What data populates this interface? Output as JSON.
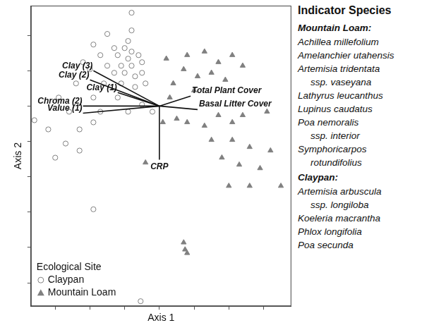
{
  "chart_data": {
    "type": "scatter",
    "x_label": "Axis 1",
    "y_label": "Axis 2",
    "xlim": [
      -1.85,
      1.9
    ],
    "ylim": [
      -2.83,
      1.42
    ],
    "xticks": [
      -1.5,
      -1,
      -0.5,
      0,
      0.5,
      1,
      1.5
    ],
    "yticks": [
      -2.5,
      -2,
      -1.5,
      -1,
      -0.5,
      0,
      0.5,
      1
    ],
    "tick_labels": false,
    "grid": false,
    "legend": "lower left",
    "legend_title": "Ecological Site",
    "series": [
      {
        "name": "Claypan",
        "color": "#808080",
        "marker": "open_circle",
        "x": [
          -0.4,
          -0.4,
          -0.75,
          -0.45,
          -0.95,
          -0.65,
          -0.5,
          -0.4,
          -0.85,
          -0.6,
          -0.45,
          -0.3,
          -1.1,
          -0.75,
          -0.55,
          -0.4,
          -0.25,
          -1.0,
          -0.65,
          -0.5,
          -0.35,
          -0.25,
          -1.2,
          -0.8,
          -0.55,
          -0.35,
          -0.2,
          -1.45,
          -0.95,
          -0.6,
          -1.3,
          -0.85,
          -0.45,
          -1.6,
          -1.15,
          -0.95,
          -1.8,
          -1.35,
          -1.5,
          -1.15,
          -0.95,
          -0.27,
          -0.1,
          -0.25
        ],
        "y": [
          1.32,
          1.07,
          1.02,
          0.92,
          0.87,
          0.82,
          0.82,
          0.77,
          0.72,
          0.72,
          0.67,
          0.72,
          0.62,
          0.57,
          0.57,
          0.57,
          0.62,
          0.52,
          0.47,
          0.47,
          0.42,
          0.47,
          0.32,
          0.32,
          0.32,
          0.27,
          0.32,
          0.12,
          0.12,
          0.12,
          -0.08,
          -0.08,
          -0.08,
          -0.33,
          -0.33,
          -0.23,
          -0.2,
          -0.53,
          -0.73,
          -0.63,
          -1.46,
          -2.76,
          -0.08,
          0.02
        ]
      },
      {
        "name": "Mountain Loam",
        "color": "#808080",
        "marker": "triangle",
        "x": [
          0.1,
          0.4,
          0.65,
          0.85,
          1.05,
          1.2,
          0.35,
          0.55,
          0.75,
          0.95,
          0.2,
          0.5,
          0.15,
          0.05,
          0.25,
          0.4,
          0.65,
          0.85,
          1.05,
          1.2,
          1.55,
          0.75,
          1.05,
          1.3,
          1.6,
          0.9,
          1.15,
          1.45,
          -0.2,
          1.0,
          1.3,
          1.75,
          0.35,
          0.37,
          0.4
        ],
        "y": [
          0.67,
          0.72,
          0.77,
          0.62,
          0.72,
          0.57,
          0.52,
          0.42,
          0.47,
          0.37,
          0.32,
          0.22,
          0.12,
          -0.23,
          -0.18,
          -0.23,
          -0.28,
          -0.13,
          -0.23,
          -0.13,
          -0.08,
          -0.48,
          -0.48,
          -0.58,
          -0.63,
          -0.73,
          -0.83,
          -0.88,
          -0.8,
          -1.13,
          -1.13,
          -1.13,
          -1.93,
          -2.03,
          -2.08
        ]
      }
    ],
    "vectors": [
      {
        "label": "Clay (3)",
        "x": -0.95,
        "y": 0.5
      },
      {
        "label": "Clay (2)",
        "x": -1.0,
        "y": 0.37
      },
      {
        "label": "Clay (1)",
        "x": -0.6,
        "y": 0.19
      },
      {
        "label": "Chroma (2)",
        "x": -1.1,
        "y": 0.0
      },
      {
        "label": "Value (1)",
        "x": -1.1,
        "y": -0.1
      },
      {
        "label": "Total Plant Cover",
        "x": 0.45,
        "y": 0.14
      },
      {
        "label": "Basal Litter Cover",
        "x": 0.55,
        "y": -0.05
      },
      {
        "label": "CRP",
        "x": 0.0,
        "y": -0.76
      }
    ]
  },
  "indicator_species": {
    "title": "Indicator Species",
    "groups": [
      {
        "name": "Mountain Loam:",
        "species": [
          [
            "Achillea millefolium"
          ],
          [
            "Amelanchier utahensis"
          ],
          [
            "Artemisia tridentata",
            "ssp. vaseyana"
          ],
          [
            "Lathyrus leucanthus"
          ],
          [
            "Lupinus caudatus"
          ],
          [
            "Poa nemoralis",
            "ssp. interior"
          ],
          [
            "Symphoricarpos",
            "rotundifolius"
          ]
        ]
      },
      {
        "name": "Claypan:",
        "species": [
          [
            "Artemisia arbuscula",
            "ssp. longiloba"
          ],
          [
            "Koeleria macrantha"
          ],
          [
            "Phlox longifolia"
          ],
          [
            "Poa secunda"
          ]
        ]
      }
    ]
  }
}
